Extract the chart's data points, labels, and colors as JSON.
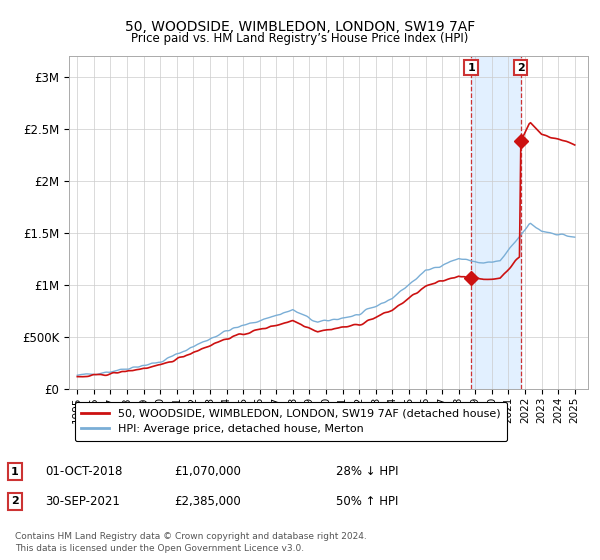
{
  "title": "50, WOODSIDE, WIMBLEDON, LONDON, SW19 7AF",
  "subtitle": "Price paid vs. HM Land Registry’s House Price Index (HPI)",
  "ylim": [
    0,
    3200000
  ],
  "yticks": [
    0,
    500000,
    1000000,
    1500000,
    2000000,
    2500000,
    3000000
  ],
  "ytick_labels": [
    "£0",
    "£500K",
    "£1M",
    "£1.5M",
    "£2M",
    "£2.5M",
    "£3M"
  ],
  "legend_entry1": "50, WOODSIDE, WIMBLEDON, LONDON, SW19 7AF (detached house)",
  "legend_entry2": "HPI: Average price, detached house, Merton",
  "annotation1_date": "01-OCT-2018",
  "annotation1_price": "£1,070,000",
  "annotation1_hpi": "28% ↓ HPI",
  "annotation2_date": "30-SEP-2021",
  "annotation2_price": "£2,385,000",
  "annotation2_hpi": "50% ↑ HPI",
  "footnote": "Contains HM Land Registry data © Crown copyright and database right 2024.\nThis data is licensed under the Open Government Licence v3.0.",
  "hpi_color": "#7aaed6",
  "price_color": "#cc1111",
  "shade_color": "#ddeeff",
  "vline_color": "#cc3333",
  "point1_x": 2018.75,
  "point1_y": 1070000,
  "point2_x": 2021.75,
  "point2_y": 2385000,
  "vline1_x": 2018.75,
  "vline2_x": 2021.75,
  "xlim_left": 1994.5,
  "xlim_right": 2025.8
}
